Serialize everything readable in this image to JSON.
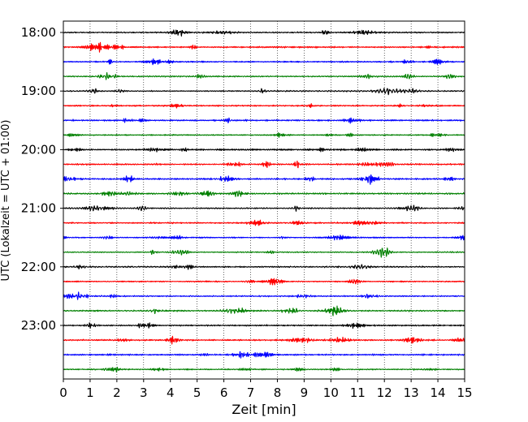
{
  "chart_data": {
    "type": "line",
    "title": "",
    "xlabel": "Zeit  [min]",
    "ylabel": "UTC (Lokalzeit = UTC + 01:00)",
    "xlim": [
      0,
      15
    ],
    "x_ticks": [
      0,
      1,
      2,
      3,
      4,
      5,
      6,
      7,
      8,
      9,
      10,
      11,
      12,
      13,
      14,
      15
    ],
    "y_tick_labels": [
      "18:00",
      "19:00",
      "20:00",
      "21:00",
      "22:00",
      "23:00"
    ],
    "trace_colors": [
      "#000000",
      "#ff0000",
      "#0000ff",
      "#008000"
    ],
    "trace_start_times": [
      "18:00",
      "18:15",
      "18:30",
      "18:45",
      "19:00",
      "19:15",
      "19:30",
      "19:45",
      "20:00",
      "20:15",
      "20:30",
      "20:45",
      "21:00",
      "21:15",
      "21:30",
      "21:45",
      "22:00",
      "22:15",
      "22:30",
      "22:45",
      "23:00",
      "23:15",
      "23:30",
      "23:45"
    ],
    "grid": "vertical dotted lines at each minute"
  }
}
